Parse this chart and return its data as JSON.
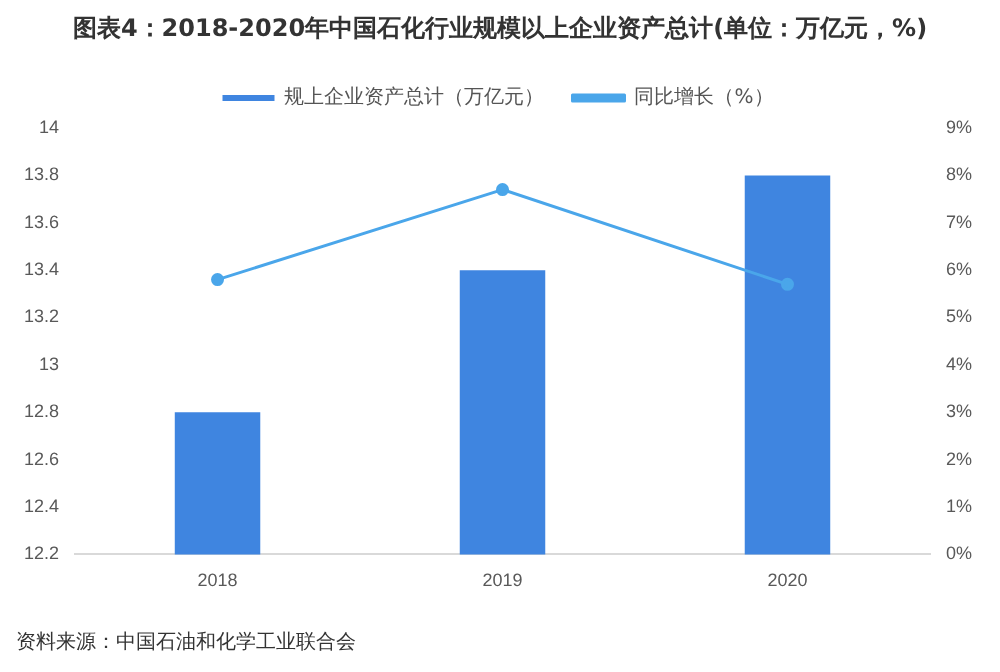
{
  "chart_data": {
    "type": "bar",
    "title": "图表4：2018-2020年中国石化行业规模以上企业资产总计(单位：万亿元，%)",
    "categories": [
      "2018",
      "2019",
      "2020"
    ],
    "series": [
      {
        "name": "规上企业资产总计（万亿元）",
        "color": "#3f85e0",
        "values": [
          12.8,
          13.4,
          13.8
        ]
      },
      {
        "name": "同比增长（%）",
        "type": "line",
        "axis": "y2",
        "color": "#4aa6ea",
        "values": [
          5.8,
          7.7,
          5.7
        ]
      }
    ],
    "ylim": [
      12.2,
      14
    ],
    "yticks": [
      12.2,
      12.4,
      12.6,
      12.8,
      13,
      13.2,
      13.4,
      13.6,
      13.8,
      14
    ],
    "y2lim": [
      0,
      9
    ],
    "y2ticks": [
      {
        "value": 0,
        "label": "0%"
      },
      {
        "value": 1,
        "label": "1%"
      },
      {
        "value": 2,
        "label": "2%"
      },
      {
        "value": 3,
        "label": "3%"
      },
      {
        "value": 4,
        "label": "4%"
      },
      {
        "value": 5,
        "label": "5%"
      },
      {
        "value": 6,
        "label": "6%"
      },
      {
        "value": 7,
        "label": "7%"
      },
      {
        "value": 8,
        "label": "8%"
      },
      {
        "value": 9,
        "label": "9%"
      }
    ],
    "grid": false,
    "legend": "top",
    "marker": "circle",
    "annotations": [
      "资料来源：中国石油和化学工业联合会"
    ]
  }
}
